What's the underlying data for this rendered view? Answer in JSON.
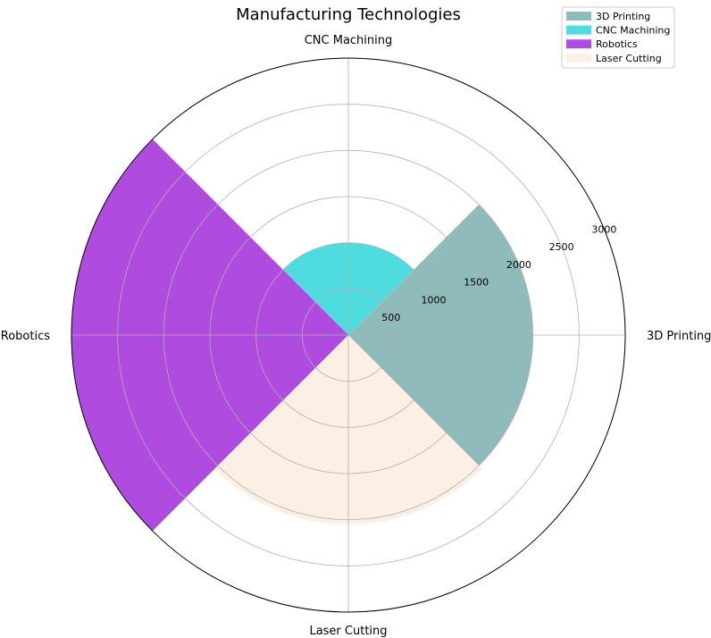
{
  "chart_data": {
    "type": "polar-bar",
    "title": "Manufacturing Technologies",
    "categories": [
      "3D Printing",
      "CNC Machining",
      "Robotics",
      "Laser Cutting"
    ],
    "angles_deg": [
      0,
      90,
      180,
      270
    ],
    "values": [
      2000,
      1000,
      3000,
      2050
    ],
    "colors": [
      "#8fbbbb",
      "#4fdcdf",
      "#b04be0",
      "#fcefe3"
    ],
    "radial_ticks": [
      500,
      1000,
      1500,
      2000,
      2500,
      3000
    ],
    "radial_tick_labels": [
      "500",
      "1000",
      "1500",
      "2000",
      "2500",
      "3000"
    ],
    "rlim": [
      0,
      3000
    ],
    "grid": true,
    "legend": {
      "placement": "top-right",
      "entries": [
        "3D Printing",
        "CNC Machining",
        "Robotics",
        "Laser Cutting"
      ]
    }
  }
}
